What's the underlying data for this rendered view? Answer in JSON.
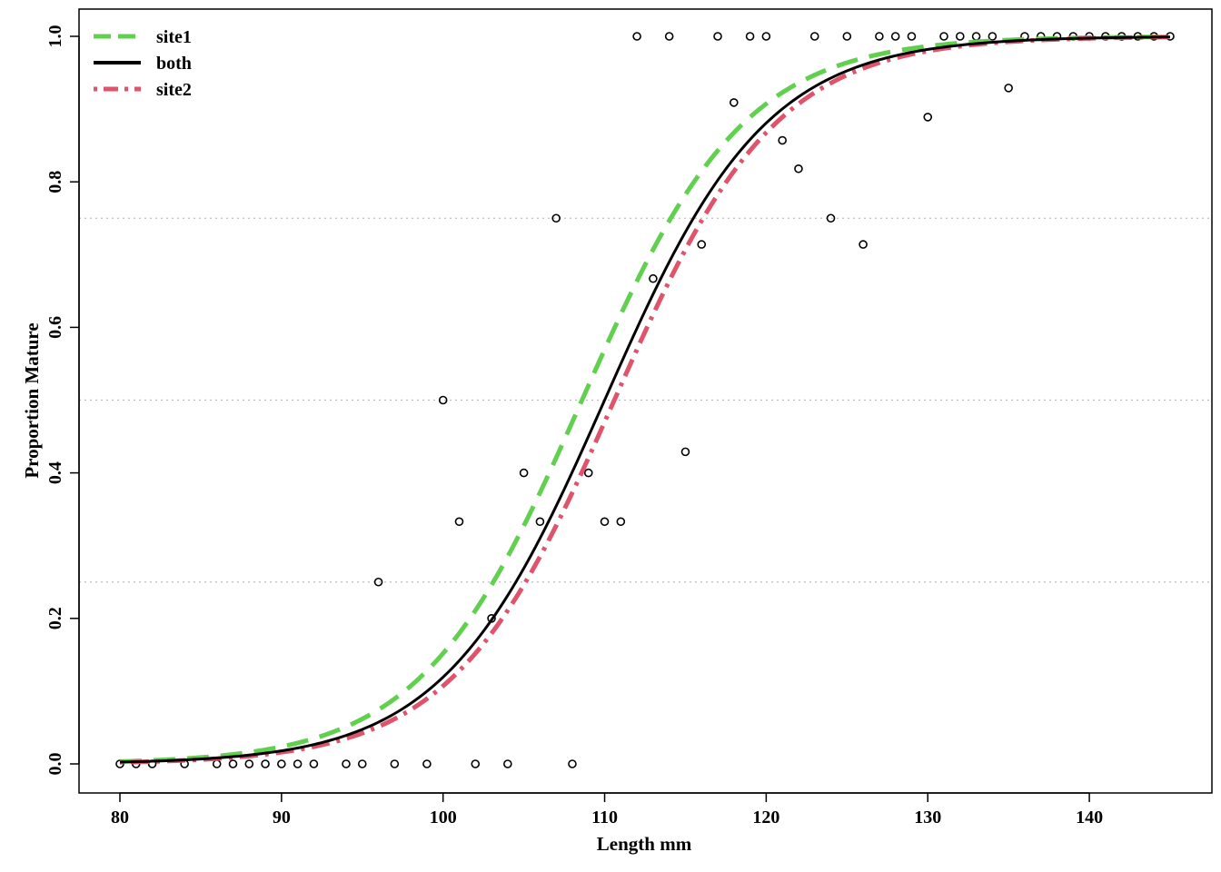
{
  "chart_data": {
    "type": "scatter",
    "title": "",
    "xlabel": "Length mm",
    "ylabel": "Proportion Mature",
    "xlim": [
      80,
      145
    ],
    "ylim": [
      0,
      1
    ],
    "xticks": [
      80,
      90,
      100,
      110,
      120,
      130,
      140
    ],
    "yticks": [
      0.0,
      0.2,
      0.4,
      0.6,
      0.8,
      1.0
    ],
    "ytick_labels": [
      "0.0",
      "0.2",
      "0.4",
      "0.6",
      "0.8",
      "1.0"
    ],
    "reference_lines_y": [
      0.25,
      0.5,
      0.75
    ],
    "legend_position": "top-left",
    "points": {
      "x": [
        80,
        81,
        82,
        84,
        86,
        87,
        88,
        89,
        90,
        91,
        92,
        94,
        95,
        96,
        97,
        99,
        100,
        101,
        102,
        103,
        104,
        105,
        106,
        107,
        108,
        109,
        110,
        111,
        112,
        113,
        114,
        115,
        116,
        117,
        118,
        119,
        120,
        121,
        122,
        123,
        124,
        125,
        126,
        127,
        128,
        129,
        130,
        131,
        132,
        133,
        134,
        135,
        136,
        137,
        138,
        139,
        140,
        141,
        142,
        143,
        144,
        145
      ],
      "y": [
        0,
        0,
        0,
        0,
        0,
        0,
        0,
        0,
        0,
        0,
        0,
        0,
        0,
        0.25,
        0,
        0,
        0.5,
        0.333,
        0,
        0.2,
        0,
        0.4,
        0.333,
        0.75,
        0,
        0.4,
        0.333,
        0.333,
        1,
        0.667,
        1,
        0.429,
        0.714,
        1,
        0.909,
        1,
        1,
        0.857,
        0.818,
        1,
        0.75,
        1,
        0.714,
        1,
        1,
        1,
        0.889,
        1,
        1,
        1,
        1,
        0.929,
        1,
        1,
        1,
        1,
        1,
        1,
        1,
        1,
        1,
        1
      ]
    },
    "series": [
      {
        "name": "site1",
        "model": "logistic",
        "midpoint": 108.6,
        "slope": 0.2,
        "color": "#61D04F",
        "style": "dashed"
      },
      {
        "name": "both",
        "model": "logistic",
        "midpoint": 110.0,
        "slope": 0.2,
        "color": "#000000",
        "style": "solid"
      },
      {
        "name": "site2",
        "model": "logistic",
        "midpoint": 110.6,
        "slope": 0.2,
        "color": "#DF536B",
        "style": "dotdash"
      }
    ]
  }
}
